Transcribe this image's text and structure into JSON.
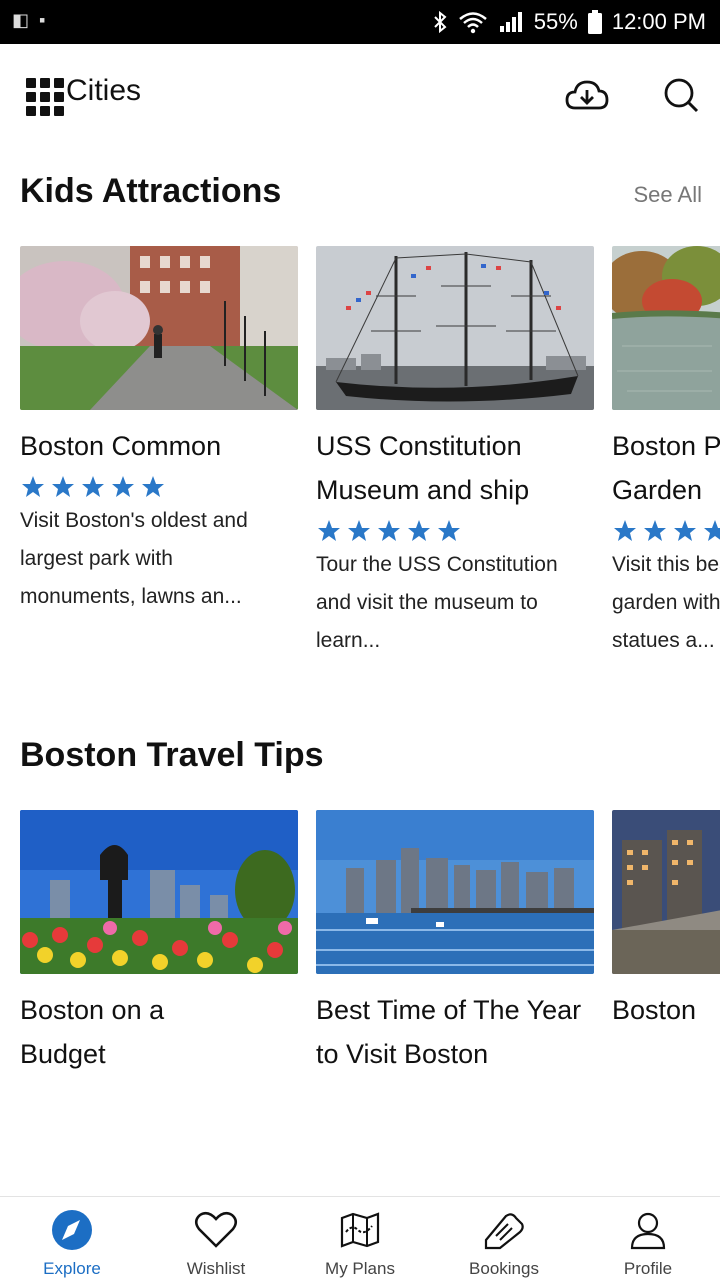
{
  "status_bar": {
    "battery": "55%",
    "time": "12:00 PM"
  },
  "header": {
    "title": "Cities",
    "icons": [
      "grid-menu-icon",
      "cloud-download-icon",
      "search-icon"
    ]
  },
  "sections": [
    {
      "title": "Kids Attractions",
      "see_all": "See All",
      "cards": [
        {
          "title": "Boston Common",
          "rating": 5,
          "description": "Visit Boston's oldest and largest park with monuments, lawns an..."
        },
        {
          "title": "USS Constitution Museum and ship",
          "rating": 5,
          "description": "Tour the USS Constitution and visit the museum to learn..."
        },
        {
          "title": "Boston Public Garden",
          "rating": 5,
          "description": "Visit this beautiful garden with a lake, statues a..."
        }
      ]
    },
    {
      "title": "Boston Travel Tips",
      "cards": [
        {
          "title": "Boston on a Budget"
        },
        {
          "title": "Best Time of The Year to Visit Boston"
        },
        {
          "title": "Boston"
        }
      ]
    }
  ],
  "bottom_nav": [
    {
      "label": "Explore",
      "icon": "compass-icon",
      "active": true
    },
    {
      "label": "Wishlist",
      "icon": "heart-icon",
      "active": false
    },
    {
      "label": "My Plans",
      "icon": "map-icon",
      "active": false
    },
    {
      "label": "Bookings",
      "icon": "ticket-icon",
      "active": false
    },
    {
      "label": "Profile",
      "icon": "user-icon",
      "active": false
    }
  ],
  "colors": {
    "accent": "#1c6ec4",
    "star": "#2a78c8",
    "status_bar": "#000000"
  }
}
